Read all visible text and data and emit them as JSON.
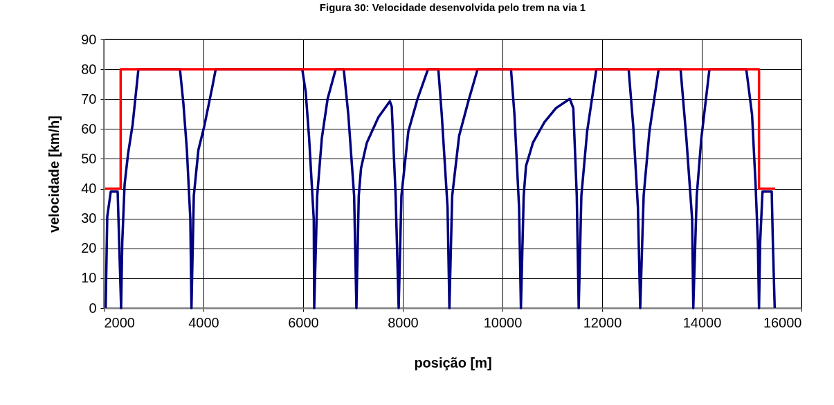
{
  "chart_data": {
    "type": "line",
    "title": "Figura 30: Velocidade desenvolvida pelo trem na via 1",
    "xlabel": "posição [m]",
    "ylabel": "velocidade [km/h]",
    "xlim": [
      2000,
      16000
    ],
    "xticks": [
      2000,
      4000,
      6000,
      8000,
      10000,
      12000,
      14000,
      16000
    ],
    "ylim": [
      0,
      90
    ],
    "yticks": [
      0,
      10,
      20,
      30,
      40,
      50,
      60,
      70,
      80,
      90
    ],
    "grid": true,
    "line_style": "solid",
    "series": [
      {
        "color": "#000080",
        "x": [
          2037,
          2069,
          2139,
          2278,
          2347,
          2370,
          2417,
          2486,
          2579,
          2694,
          3528,
          3597,
          3667,
          3736,
          3759,
          3806,
          3898,
          4014,
          4176,
          4245,
          5982,
          6051,
          6120,
          6213,
          6222,
          6282,
          6375,
          6491,
          6653,
          6815,
          6907,
          7023,
          7069,
          7116,
          7162,
          7278,
          7509,
          7740,
          7778,
          7856,
          7917,
          7972,
          8111,
          8296,
          8505,
          8713,
          8782,
          8898,
          8935,
          8991,
          9130,
          9315,
          9500,
          10171,
          10241,
          10333,
          10370,
          10426,
          10472,
          10611,
          10843,
          11074,
          11352,
          11421,
          11491,
          11530,
          11583,
          11699,
          11884,
          12532,
          12625,
          12718,
          12764,
          12833,
          12949,
          13134,
          13574,
          13690,
          13806,
          13829,
          13898,
          13991,
          14153,
          14893,
          15009,
          15079,
          15125,
          15148,
          15171,
          15218,
          15403,
          15426,
          15463
        ],
        "values": [
          0,
          30.6,
          39,
          39,
          0,
          22,
          41.4,
          51.6,
          61.6,
          80,
          80,
          68.5,
          53,
          29.8,
          0,
          37.6,
          53,
          60.8,
          74,
          80,
          80,
          72.4,
          56.9,
          29.8,
          0,
          37.6,
          56.9,
          70.1,
          80,
          80,
          64.7,
          37.6,
          0,
          37.6,
          46.9,
          55.4,
          63.9,
          69.3,
          67.5,
          37.6,
          0,
          37.6,
          59.2,
          70.1,
          80,
          80,
          64.7,
          33.7,
          0,
          37.6,
          57.7,
          69.3,
          80,
          80,
          64.7,
          33.7,
          0,
          37.6,
          47.6,
          55.4,
          62.3,
          67,
          70.1,
          67,
          37.6,
          0,
          37.6,
          59.2,
          80,
          80,
          60.8,
          33.7,
          0,
          37.6,
          59.2,
          80,
          80,
          56.9,
          29.8,
          0,
          37.6,
          56.9,
          80,
          80,
          64.7,
          41.4,
          22,
          0,
          22,
          39,
          39,
          22,
          0
        ]
      },
      {
        "color": "#ff0000",
        "x": [
          2023,
          2338,
          2338,
          15148,
          15148,
          15470
        ],
        "values": [
          40,
          40,
          80,
          80,
          40,
          40
        ]
      }
    ]
  }
}
